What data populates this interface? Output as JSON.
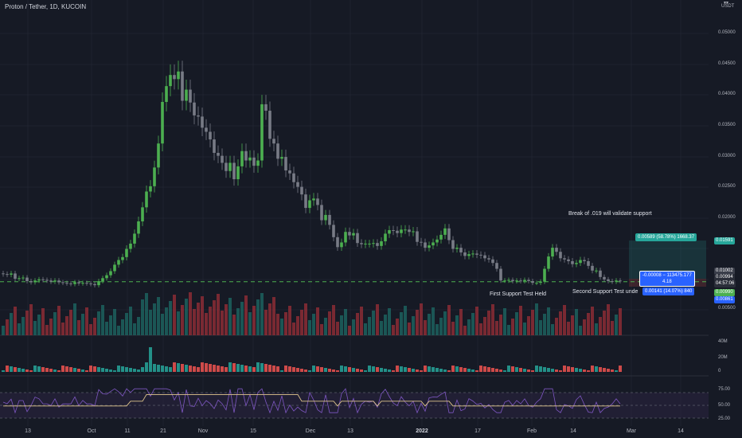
{
  "header": {
    "title": "Proton / Tether, 1D, KUCOIN",
    "unit": "USDT"
  },
  "price_axis": {
    "ticks": [
      "0.05000",
      "0.04500",
      "0.04000",
      "0.03500",
      "0.03000",
      "0.02500",
      "0.02000",
      "0.01500",
      "0.01000",
      "0.00500"
    ]
  },
  "price_tags": {
    "target": "0.01591",
    "current": "0.01002",
    "mid": "0.00994",
    "countdown": "04:57:06",
    "green": "0.00990",
    "blue": "0.00861"
  },
  "volume_axis": {
    "ticks": [
      "40M",
      "20M",
      "0"
    ]
  },
  "rsi_axis": {
    "ticks": [
      "75.00",
      "50.00",
      "25.00"
    ]
  },
  "time_axis": {
    "labels": [
      {
        "text": "13",
        "bold": false
      },
      {
        "text": "Oct",
        "bold": false
      },
      {
        "text": "11",
        "bold": false
      },
      {
        "text": "21",
        "bold": false
      },
      {
        "text": "Nov",
        "bold": false
      },
      {
        "text": "15",
        "bold": false
      },
      {
        "text": "Dec",
        "bold": false
      },
      {
        "text": "13",
        "bold": false
      },
      {
        "text": "2022",
        "bold": true
      },
      {
        "text": "17",
        "bold": false
      },
      {
        "text": "Feb",
        "bold": false
      },
      {
        "text": "14",
        "bold": false
      },
      {
        "text": "Mar",
        "bold": false
      },
      {
        "text": "14",
        "bold": false
      }
    ]
  },
  "annotations": {
    "break": "Break of .019 will validate support",
    "first": "First Support Test Held",
    "second": "Second Support Test unde"
  },
  "position_tool": {
    "profit": "0.00589 (58.78%) 1668.37",
    "line1": "-0.00008 − 113475.177",
    "line2": "4.18",
    "stop": "0.00141 (14.07%) 840"
  },
  "colors": {
    "background": "#161a25",
    "bull": "#26a69a",
    "candle_up": "#4caf50",
    "candle_down": "#787b86",
    "vol_bull": "#1e6b66",
    "vol_bear": "#9b2f37",
    "support_line": "#4caf50",
    "rsi_band": "#2a2340"
  },
  "chart_data": {
    "type": "candlestick",
    "symbol": "Proton / Tether",
    "interval": "1D",
    "exchange": "KUCOIN",
    "ylim": [
      0.0,
      0.0525
    ],
    "support_level": 0.0099,
    "close_series": [
      0.0112,
      0.0111,
      0.0113,
      0.0104,
      0.0105,
      0.0106,
      0.01,
      0.0098,
      0.0101,
      0.0103,
      0.0102,
      0.0101,
      0.0099,
      0.0101,
      0.0098,
      0.0097,
      0.0096,
      0.0095,
      0.0098,
      0.0096,
      0.0097,
      0.0096,
      0.0095,
      0.0093,
      0.01,
      0.0105,
      0.011,
      0.0117,
      0.0128,
      0.0136,
      0.0141,
      0.0155,
      0.0164,
      0.0181,
      0.0202,
      0.0226,
      0.0253,
      0.0262,
      0.0294,
      0.0335,
      0.0406,
      0.0433,
      0.0452,
      0.0445,
      0.0458,
      0.0408,
      0.0427,
      0.0405,
      0.0383,
      0.0381,
      0.0362,
      0.0355,
      0.0342,
      0.0319,
      0.0314,
      0.0302,
      0.0288,
      0.0302,
      0.0274,
      0.0296,
      0.0322,
      0.0306,
      0.0311,
      0.0297,
      0.0306,
      0.0402,
      0.0391,
      0.0343,
      0.0335,
      0.0309,
      0.0312,
      0.0289,
      0.0284,
      0.0269,
      0.0261,
      0.0248,
      0.0225,
      0.0238,
      0.0241,
      0.023,
      0.0204,
      0.0213,
      0.0196,
      0.0175,
      0.0158,
      0.0166,
      0.0184,
      0.0178,
      0.0182,
      0.0165,
      0.0163,
      0.0164,
      0.0164,
      0.0165,
      0.016,
      0.0168,
      0.0181,
      0.0187,
      0.0186,
      0.0182,
      0.0188,
      0.0188,
      0.0184,
      0.0185,
      0.0167,
      0.0166,
      0.0157,
      0.0161,
      0.0166,
      0.0171,
      0.0179,
      0.019,
      0.017,
      0.0155,
      0.0157,
      0.0149,
      0.0143,
      0.0146,
      0.0147,
      0.0145,
      0.0144,
      0.0139,
      0.0137,
      0.0131,
      0.0121,
      0.0101,
      0.0101,
      0.0102,
      0.01,
      0.0101,
      0.01,
      0.0102,
      0.01,
      0.0097,
      0.0097,
      0.0099,
      0.0121,
      0.0142,
      0.0157,
      0.015,
      0.0139,
      0.0137,
      0.0134,
      0.0129,
      0.0131,
      0.0136,
      0.0134,
      0.0126,
      0.0118,
      0.0118,
      0.0107,
      0.0103,
      0.01,
      0.0099,
      0.0101,
      0.01
    ],
    "volume_axis_max": "40M",
    "rsi_levels": [
      70,
      50,
      30
    ]
  }
}
